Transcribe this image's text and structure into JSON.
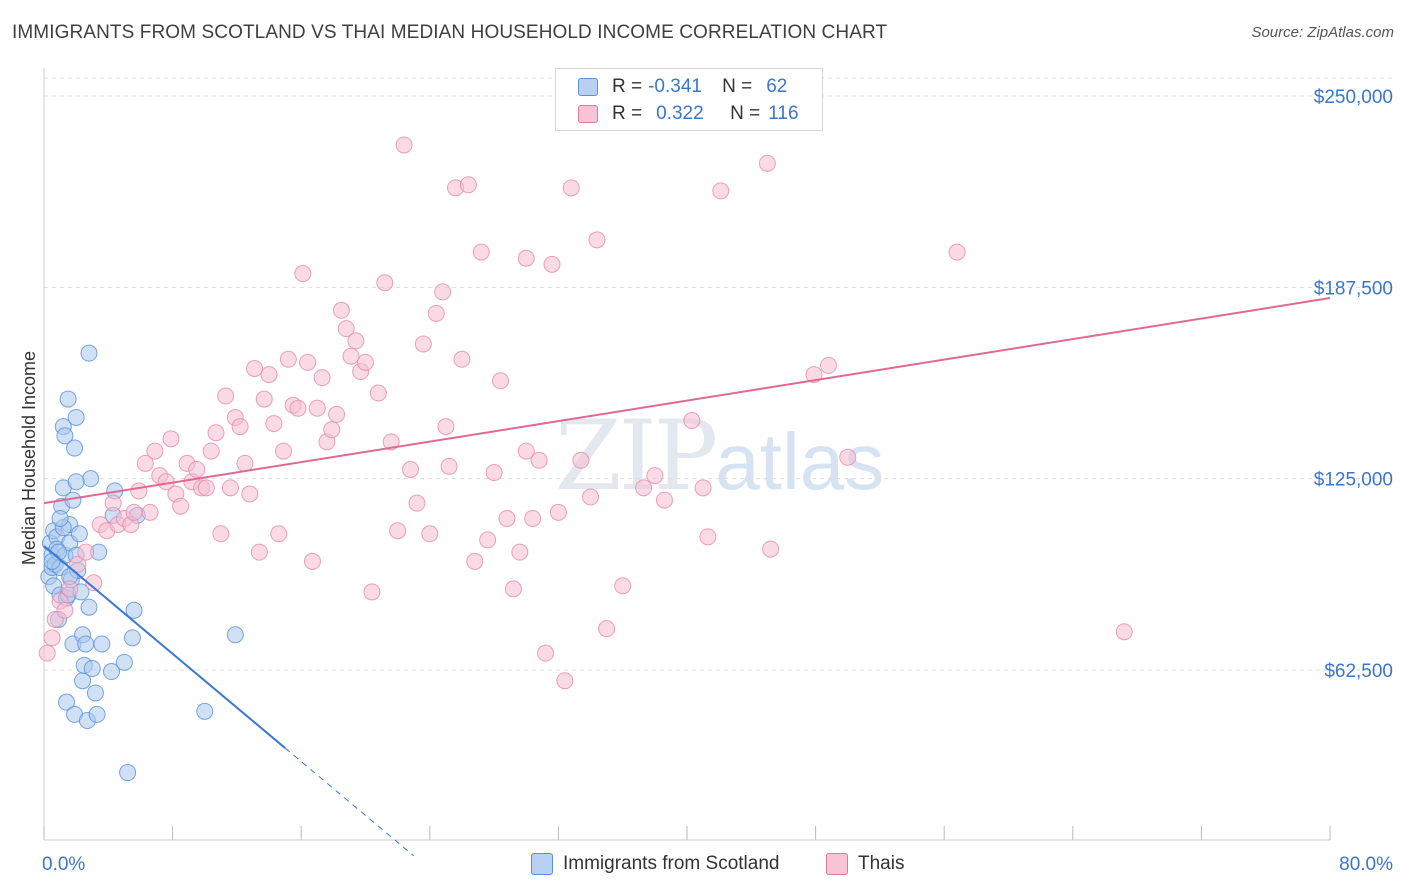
{
  "title": "IMMIGRANTS FROM SCOTLAND VS THAI MEDIAN HOUSEHOLD INCOME CORRELATION CHART",
  "source": "Source: ZipAtlas.com",
  "watermark": {
    "zip": "ZIP",
    "atlas": "atlas"
  },
  "legend": {
    "r_label": "R =",
    "n_label": "N =",
    "series": [
      {
        "name": "Immigrants from Scotland",
        "r": "-0.341",
        "n": "62",
        "fill": "#b8d1f3",
        "stroke": "#5b8fd9"
      },
      {
        "name": "Thais",
        "r": "0.322",
        "n": "116",
        "fill": "#f8c4d5",
        "stroke": "#e07a9c"
      }
    ]
  },
  "colors": {
    "blue_fill": "#aac8ef",
    "blue_stroke": "#5a8fd8",
    "blue_line": "#3a78d4",
    "pink_fill": "#f6bdd0",
    "pink_stroke": "#e68aab",
    "pink_line": "#e06892",
    "grid": "#dddddd",
    "axis_value": "#3b76cc"
  },
  "chart_data": {
    "type": "scatter",
    "title": "IMMIGRANTS FROM SCOTLAND VS THAI MEDIAN HOUSEHOLD INCOME CORRELATION CHART",
    "xlabel": "",
    "ylabel": "Median Household Income",
    "xlim": [
      0,
      80
    ],
    "ylim": [
      10000,
      260000
    ],
    "x_tick_labels": [
      "0.0%",
      "80.0%"
    ],
    "y_ticks": [
      62500,
      125000,
      187500,
      250000
    ],
    "y_tick_labels": [
      "$62,500",
      "$125,000",
      "$187,500",
      "$250,000"
    ],
    "grid": true,
    "series": [
      {
        "name": "Immigrants from Scotland",
        "points": [
          [
            0.3,
            93000
          ],
          [
            0.4,
            104000
          ],
          [
            0.5,
            96000
          ],
          [
            0.5,
            100000
          ],
          [
            0.6,
            108000
          ],
          [
            0.6,
            90000
          ],
          [
            0.7,
            97000
          ],
          [
            0.8,
            106000
          ],
          [
            0.8,
            102000
          ],
          [
            0.9,
            79000
          ],
          [
            1.0,
            87000
          ],
          [
            1.0,
            96000
          ],
          [
            1.1,
            116000
          ],
          [
            1.2,
            122000
          ],
          [
            1.2,
            142000
          ],
          [
            1.3,
            139000
          ],
          [
            1.3,
            100000
          ],
          [
            1.4,
            86000
          ],
          [
            1.4,
            52000
          ],
          [
            1.5,
            151000
          ],
          [
            1.5,
            87000
          ],
          [
            1.6,
            110000
          ],
          [
            1.6,
            104000
          ],
          [
            1.7,
            92000
          ],
          [
            1.8,
            118000
          ],
          [
            1.8,
            71000
          ],
          [
            1.9,
            48000
          ],
          [
            1.9,
            135000
          ],
          [
            2.0,
            145000
          ],
          [
            2.0,
            100000
          ],
          [
            2.1,
            95000
          ],
          [
            2.2,
            107000
          ],
          [
            2.3,
            88000
          ],
          [
            2.4,
            59000
          ],
          [
            2.4,
            74000
          ],
          [
            2.5,
            64000
          ],
          [
            2.6,
            71000
          ],
          [
            2.7,
            46000
          ],
          [
            2.8,
            83000
          ],
          [
            2.9,
            125000
          ],
          [
            3.0,
            63000
          ],
          [
            3.2,
            55000
          ],
          [
            3.3,
            48000
          ],
          [
            3.4,
            101000
          ],
          [
            3.6,
            71000
          ],
          [
            4.2,
            62000
          ],
          [
            4.3,
            113000
          ],
          [
            4.4,
            121000
          ],
          [
            5.0,
            65000
          ],
          [
            5.5,
            73000
          ],
          [
            5.6,
            82000
          ],
          [
            5.8,
            113000
          ],
          [
            10.0,
            49000
          ],
          [
            11.9,
            74000
          ],
          [
            2.8,
            166000
          ],
          [
            5.2,
            29000
          ],
          [
            1.2,
            109000
          ],
          [
            0.9,
            101000
          ],
          [
            2.0,
            124000
          ],
          [
            1.6,
            93000
          ],
          [
            0.5,
            98000
          ],
          [
            1.0,
            112000
          ]
        ]
      },
      {
        "name": "Thais",
        "points": [
          [
            0.2,
            68000
          ],
          [
            0.5,
            73000
          ],
          [
            0.7,
            79000
          ],
          [
            1.0,
            85000
          ],
          [
            1.3,
            82000
          ],
          [
            1.6,
            89000
          ],
          [
            2.1,
            97000
          ],
          [
            2.6,
            101000
          ],
          [
            3.1,
            91000
          ],
          [
            3.5,
            110000
          ],
          [
            3.9,
            108000
          ],
          [
            4.3,
            117000
          ],
          [
            4.6,
            110000
          ],
          [
            5.0,
            112000
          ],
          [
            5.4,
            110000
          ],
          [
            5.6,
            114000
          ],
          [
            5.9,
            121000
          ],
          [
            6.3,
            130000
          ],
          [
            6.6,
            114000
          ],
          [
            6.9,
            134000
          ],
          [
            7.2,
            126000
          ],
          [
            7.6,
            124000
          ],
          [
            7.9,
            138000
          ],
          [
            8.2,
            120000
          ],
          [
            8.5,
            116000
          ],
          [
            8.9,
            130000
          ],
          [
            9.2,
            124000
          ],
          [
            9.5,
            128000
          ],
          [
            9.8,
            122000
          ],
          [
            10.1,
            122000
          ],
          [
            10.4,
            134000
          ],
          [
            10.7,
            140000
          ],
          [
            11.0,
            107000
          ],
          [
            11.3,
            152000
          ],
          [
            11.6,
            122000
          ],
          [
            11.9,
            145000
          ],
          [
            12.2,
            142000
          ],
          [
            12.5,
            130000
          ],
          [
            12.8,
            120000
          ],
          [
            13.1,
            161000
          ],
          [
            13.4,
            101000
          ],
          [
            13.7,
            151000
          ],
          [
            14.0,
            159000
          ],
          [
            14.3,
            143000
          ],
          [
            14.6,
            107000
          ],
          [
            14.9,
            134000
          ],
          [
            15.2,
            164000
          ],
          [
            15.5,
            149000
          ],
          [
            15.8,
            148000
          ],
          [
            16.1,
            192000
          ],
          [
            16.4,
            163000
          ],
          [
            16.7,
            98000
          ],
          [
            17.0,
            148000
          ],
          [
            17.3,
            158000
          ],
          [
            17.6,
            137000
          ],
          [
            17.9,
            141000
          ],
          [
            18.2,
            146000
          ],
          [
            18.5,
            180000
          ],
          [
            18.8,
            174000
          ],
          [
            19.1,
            165000
          ],
          [
            19.4,
            170000
          ],
          [
            19.7,
            160000
          ],
          [
            20.0,
            163000
          ],
          [
            20.4,
            88000
          ],
          [
            20.8,
            153000
          ],
          [
            21.2,
            189000
          ],
          [
            21.6,
            137000
          ],
          [
            22.0,
            108000
          ],
          [
            22.4,
            234000
          ],
          [
            22.8,
            128000
          ],
          [
            23.2,
            117000
          ],
          [
            23.6,
            169000
          ],
          [
            24.0,
            107000
          ],
          [
            24.4,
            179000
          ],
          [
            24.8,
            186000
          ],
          [
            25.2,
            129000
          ],
          [
            25.6,
            220000
          ],
          [
            26.0,
            164000
          ],
          [
            26.4,
            221000
          ],
          [
            26.8,
            98000
          ],
          [
            27.2,
            199000
          ],
          [
            27.6,
            105000
          ],
          [
            28.0,
            127000
          ],
          [
            28.4,
            157000
          ],
          [
            28.8,
            112000
          ],
          [
            29.2,
            89000
          ],
          [
            29.6,
            101000
          ],
          [
            30.0,
            197000
          ],
          [
            30.4,
            112000
          ],
          [
            30.8,
            131000
          ],
          [
            31.2,
            68000
          ],
          [
            31.6,
            195000
          ],
          [
            32.0,
            114000
          ],
          [
            32.4,
            59000
          ],
          [
            32.8,
            220000
          ],
          [
            33.4,
            131000
          ],
          [
            34.0,
            119000
          ],
          [
            34.4,
            203000
          ],
          [
            35.0,
            76000
          ],
          [
            36.0,
            90000
          ],
          [
            37.3,
            122000
          ],
          [
            38.6,
            118000
          ],
          [
            40.3,
            144000
          ],
          [
            41.0,
            122000
          ],
          [
            41.3,
            106000
          ],
          [
            42.1,
            219000
          ],
          [
            45.0,
            228000
          ],
          [
            45.2,
            102000
          ],
          [
            47.9,
            159000
          ],
          [
            48.8,
            162000
          ],
          [
            50.0,
            132000
          ],
          [
            56.8,
            199000
          ],
          [
            67.2,
            75000
          ],
          [
            30.0,
            134000
          ],
          [
            25.0,
            142000
          ],
          [
            38.0,
            126000
          ]
        ]
      }
    ],
    "trend_lines": [
      {
        "series": "Immigrants from Scotland",
        "x": [
          0,
          15
        ],
        "y": [
          103000,
          37000
        ],
        "dashed_extension_to_x": 23
      },
      {
        "series": "Thais",
        "x": [
          0,
          80
        ],
        "y": [
          117000,
          184000
        ]
      }
    ]
  }
}
